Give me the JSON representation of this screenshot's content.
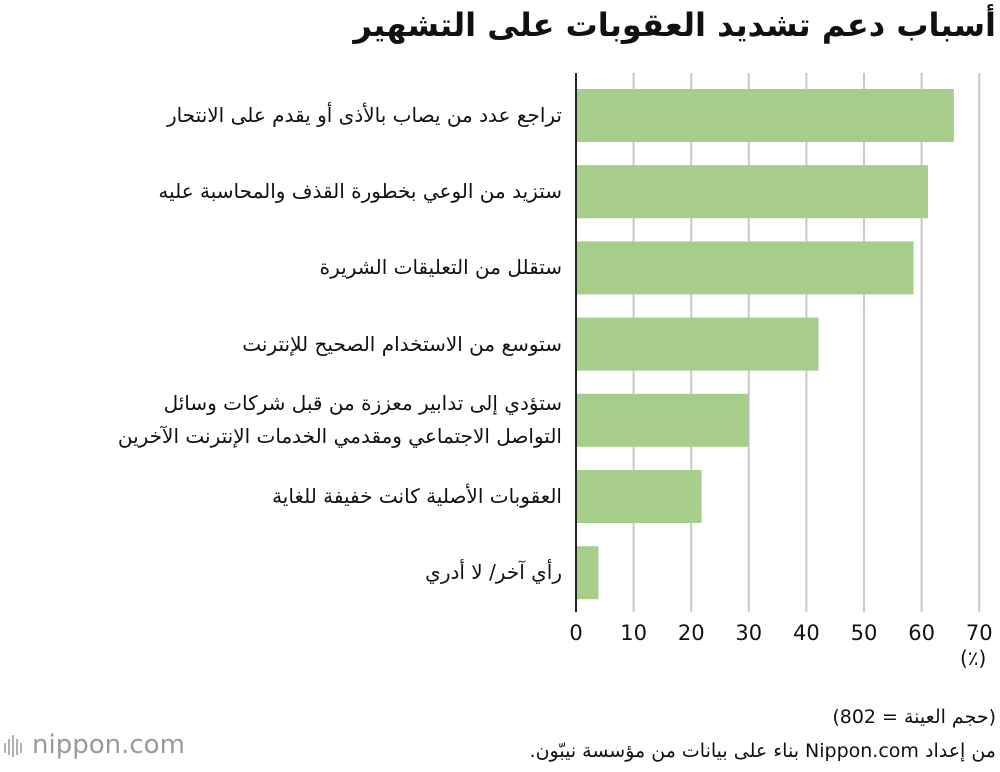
{
  "chart_data": {
    "type": "bar",
    "orientation": "horizontal",
    "title": "أسباب دعم تشديد العقوبات على التشهير",
    "categories": [
      [
        "تراجع عدد من يصاب بالأذى أو يقدم على الانتحار"
      ],
      [
        "ستزيد من الوعي بخطورة القذف والمحاسبة عليه"
      ],
      [
        "ستقلل من التعليقات الشريرة"
      ],
      [
        "ستوسع من الاستخدام الصحيح للإنترنت"
      ],
      [
        "ستؤدي إلى تدابير معززة من قبل شركات وسائل",
        "التواصل الاجتماعي ومقدمي الخدمات الإنترنت الآخرين"
      ],
      [
        "العقوبات الأصلية كانت خفيفة للغاية"
      ],
      [
        "رأي آخر/ لا أدري"
      ]
    ],
    "values": [
      65.6,
      61.1,
      58.6,
      42.1,
      29.9,
      21.8,
      3.9
    ],
    "xlim": [
      0,
      70
    ],
    "xticks": [
      0,
      10,
      20,
      30,
      40,
      50,
      60,
      70
    ],
    "unit_label": "(٪)",
    "grid": true,
    "bar_color": "#a7cd8a"
  },
  "footer": {
    "note": "(حجم العينة = 802)",
    "source": "من إعداد Nippon.com بناء على بيانات من مؤسسة نيبّون.",
    "logo_text": "nippon.com"
  }
}
